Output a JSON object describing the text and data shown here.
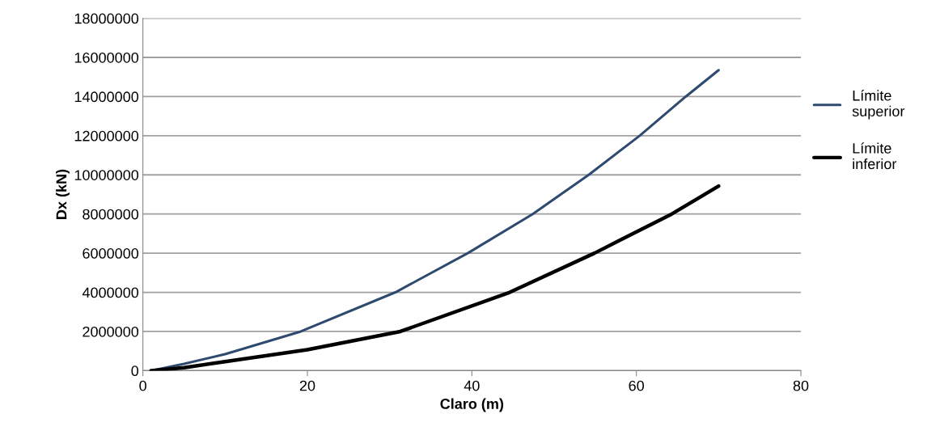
{
  "chart_data": {
    "type": "line",
    "xlabel": "Claro (m)",
    "ylabel": "Dx (kN)",
    "series": [
      {
        "name": "Límite superior",
        "color": "#2e4a6e",
        "x": [
          1,
          5,
          10,
          19.2,
          30.7,
          39.5,
          47.4,
          54.2,
          60.4,
          66,
          70
        ],
        "values": [
          0,
          350000,
          840000,
          2000000,
          4000000,
          6000000,
          8000000,
          10000000,
          12000000,
          14000000,
          15350000
        ]
      },
      {
        "name": "Límite inferior",
        "color": "#000000",
        "x": [
          1,
          5,
          10,
          20,
          31.3,
          44.6,
          54.9,
          64.3,
          70
        ],
        "values": [
          0,
          150000,
          460000,
          1070000,
          2000000,
          4000000,
          6000000,
          8000000,
          9430000
        ]
      }
    ],
    "xlim": [
      0,
      80
    ],
    "xticks": [
      0,
      20,
      40,
      60,
      80
    ],
    "ylim": [
      0,
      18000000
    ],
    "yticks": [
      0,
      2000000,
      4000000,
      6000000,
      8000000,
      10000000,
      12000000,
      14000000,
      16000000,
      18000000
    ],
    "grid": "y",
    "legend": "right",
    "marker": "none",
    "line_style": "solid"
  }
}
